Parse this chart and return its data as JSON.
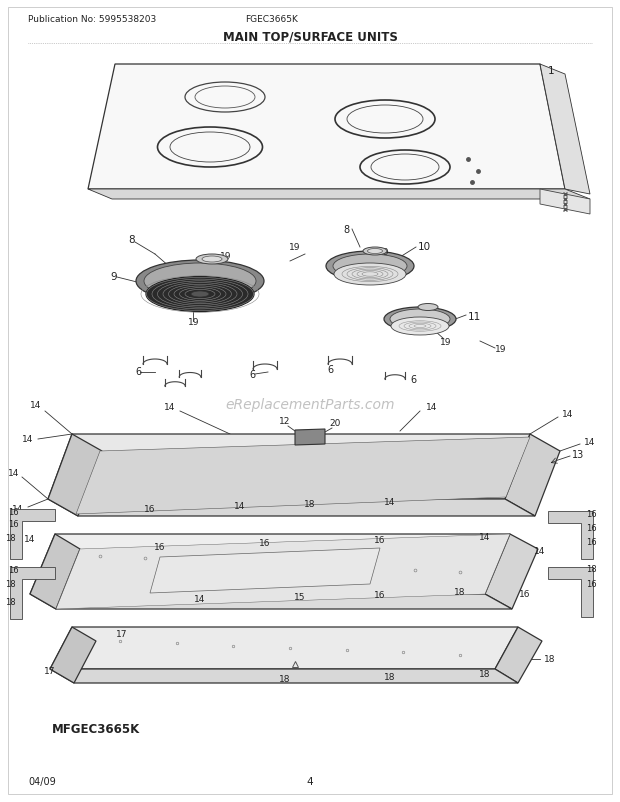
{
  "title": "MAIN TOP/SURFACE UNITS",
  "pub_no": "Publication No: 5995538203",
  "model": "FGEC3665K",
  "footer_left": "04/09",
  "footer_center": "4",
  "bottom_model": "MFGEC3665K",
  "bg_color": "#ffffff",
  "text_color": "#222222",
  "fig_width": 6.2,
  "fig_height": 8.03,
  "dpi": 100,
  "watermark": "eReplacementParts.com",
  "watermark_color": "#bbbbbb"
}
